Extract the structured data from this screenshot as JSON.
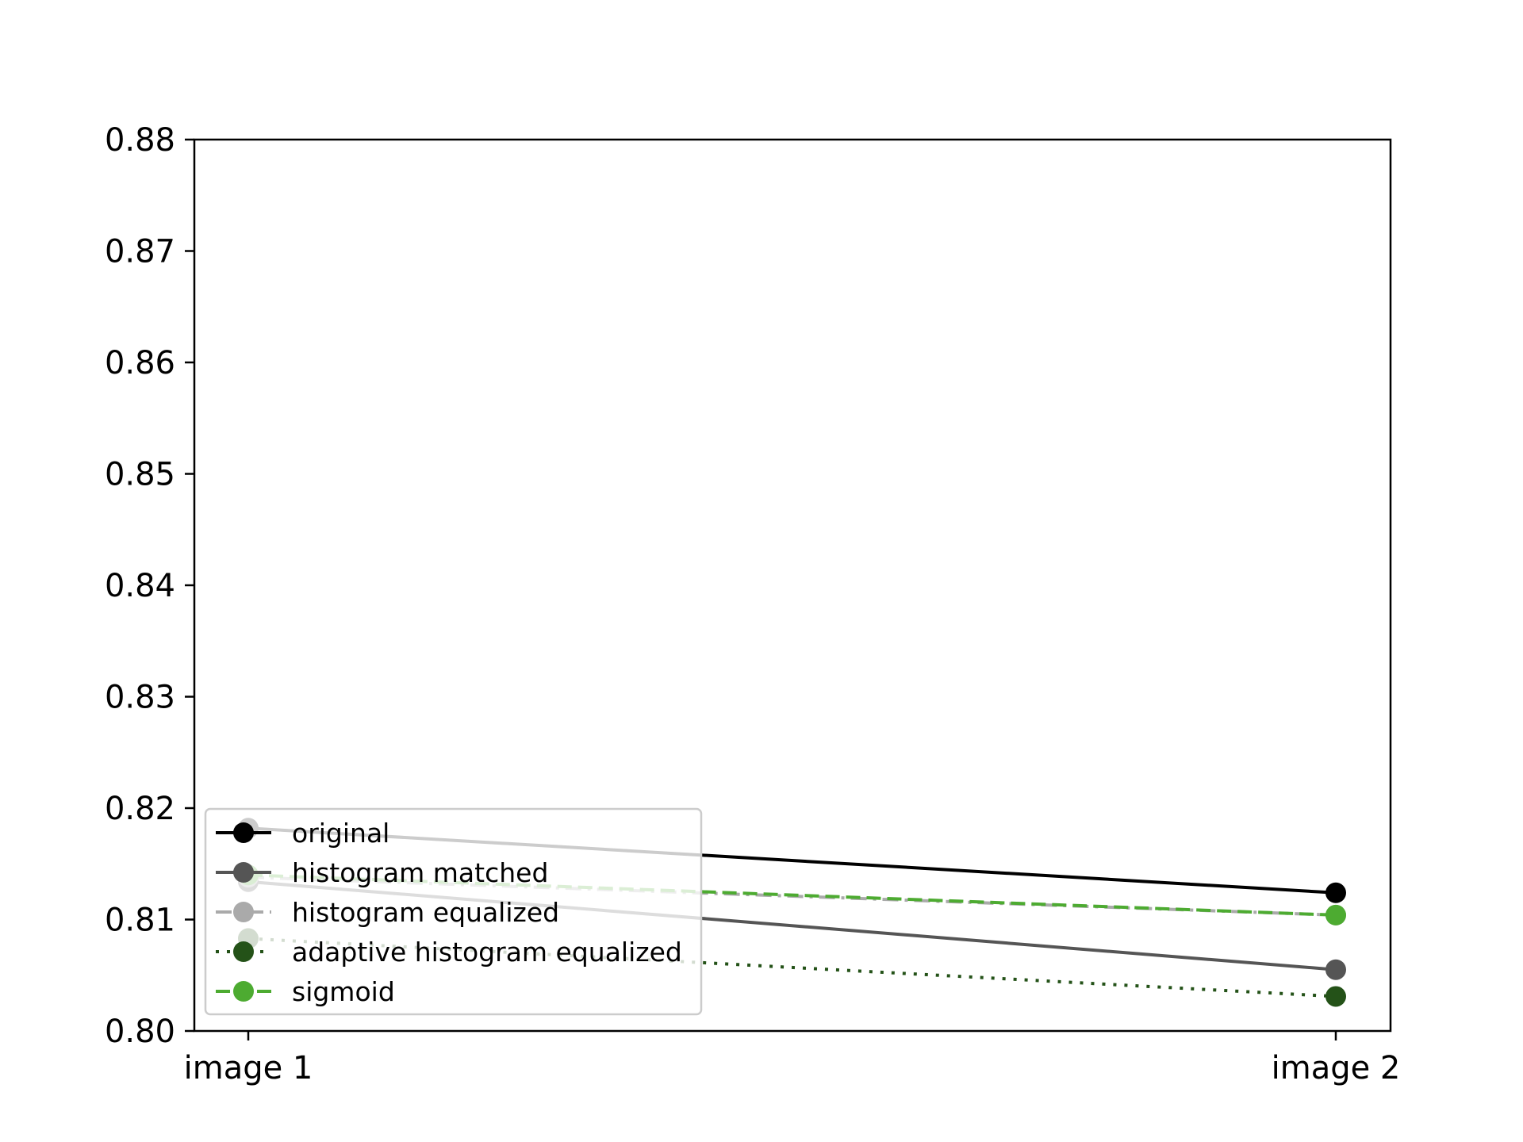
{
  "chart_data": {
    "type": "line",
    "title": "",
    "xlabel": "",
    "ylabel": "",
    "categories": [
      "image 1",
      "image 2"
    ],
    "ylim": [
      0.8,
      0.88
    ],
    "yticks": [
      "0.80",
      "0.81",
      "0.82",
      "0.83",
      "0.84",
      "0.85",
      "0.86",
      "0.87",
      "0.88"
    ],
    "grid": false,
    "legend_position": "lower-left",
    "series": [
      {
        "name": "original",
        "values": [
          0.8182,
          0.8124
        ],
        "color": "#000000",
        "dash": "solid"
      },
      {
        "name": "histogram matched",
        "values": [
          0.8134,
          0.8055
        ],
        "color": "#555555",
        "dash": "solid"
      },
      {
        "name": "histogram equalized",
        "values": [
          0.8138,
          0.8104
        ],
        "color": "#aaaaaa",
        "dash": "dashdot"
      },
      {
        "name": "adaptive histogram equalized",
        "values": [
          0.8083,
          0.8031
        ],
        "color": "#245218",
        "dash": "dotted"
      },
      {
        "name": "sigmoid",
        "values": [
          0.814,
          0.8104
        ],
        "color": "#4dab31",
        "dash": "dashed"
      }
    ]
  }
}
